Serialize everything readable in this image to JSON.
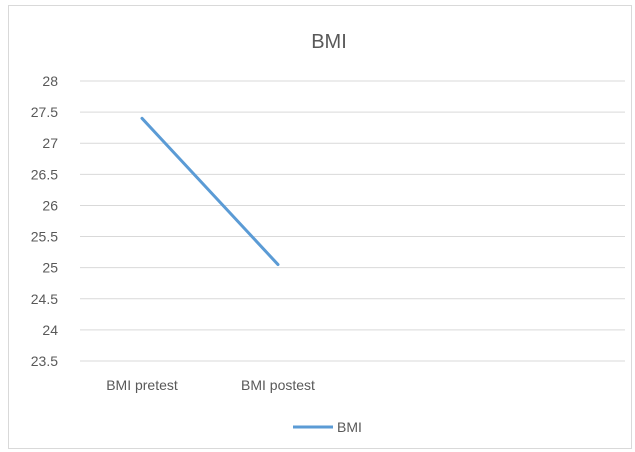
{
  "chart_data": {
    "type": "line",
    "title": "BMI",
    "categories": [
      "BMI pretest",
      "BMI postest"
    ],
    "series": [
      {
        "name": "BMI",
        "values": [
          27.4,
          25.05
        ],
        "color": "#5b9bd5"
      }
    ],
    "ylim": [
      23.5,
      28
    ],
    "yticks": [
      "28",
      "27.5",
      "27",
      "26.5",
      "26",
      "25.5",
      "25",
      "24.5",
      "24",
      "23.5"
    ],
    "grid": true,
    "legend_position": "bottom"
  }
}
